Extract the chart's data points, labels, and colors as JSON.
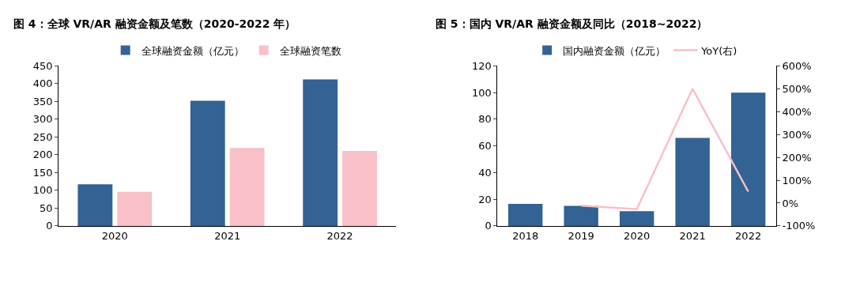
{
  "chart_data": [
    {
      "type": "bar",
      "title": "图 4：全球 VR/AR 融资金额及笔数（2020-2022 年）",
      "categories": [
        "2020",
        "2021",
        "2022"
      ],
      "series": [
        {
          "name": "全球融资金额（亿元）",
          "color": "#336294",
          "values": [
            117,
            352,
            412
          ]
        },
        {
          "name": "全球融资笔数",
          "color": "#f9c0c7",
          "values": [
            96,
            219,
            211
          ]
        }
      ],
      "ylim": [
        0,
        450
      ],
      "yticks": [
        0,
        50,
        100,
        150,
        200,
        250,
        300,
        350,
        400,
        450
      ],
      "legend": "top"
    },
    {
      "type": "bar",
      "title": "图 5：国内 VR/AR 融资金额及同比（2018~2022）",
      "categories": [
        "2018",
        "2019",
        "2020",
        "2021",
        "2022"
      ],
      "series": [
        {
          "name": "国内融资金额（亿元）",
          "color": "#336294",
          "values": [
            16.5,
            15,
            11,
            66,
            100
          ]
        },
        {
          "name": "YoY(右)",
          "color": "#f9c0c7",
          "type": "line",
          "axis": "y2",
          "values": [
            null,
            -11,
            -27,
            500,
            50
          ]
        }
      ],
      "ylim": [
        0,
        120
      ],
      "yticks": [
        0,
        20,
        40,
        60,
        80,
        100,
        120
      ],
      "y2lim": [
        -100,
        600
      ],
      "y2ticks": [
        {
          "value": -100,
          "label": "-100%"
        },
        {
          "value": 0,
          "label": "0%"
        },
        {
          "value": 100,
          "label": "100%"
        },
        {
          "value": 200,
          "label": "200%"
        },
        {
          "value": 300,
          "label": "300%"
        },
        {
          "value": 400,
          "label": "400%"
        },
        {
          "value": 500,
          "label": "500%"
        },
        {
          "value": 600,
          "label": "600%"
        }
      ],
      "legend": "top"
    }
  ]
}
